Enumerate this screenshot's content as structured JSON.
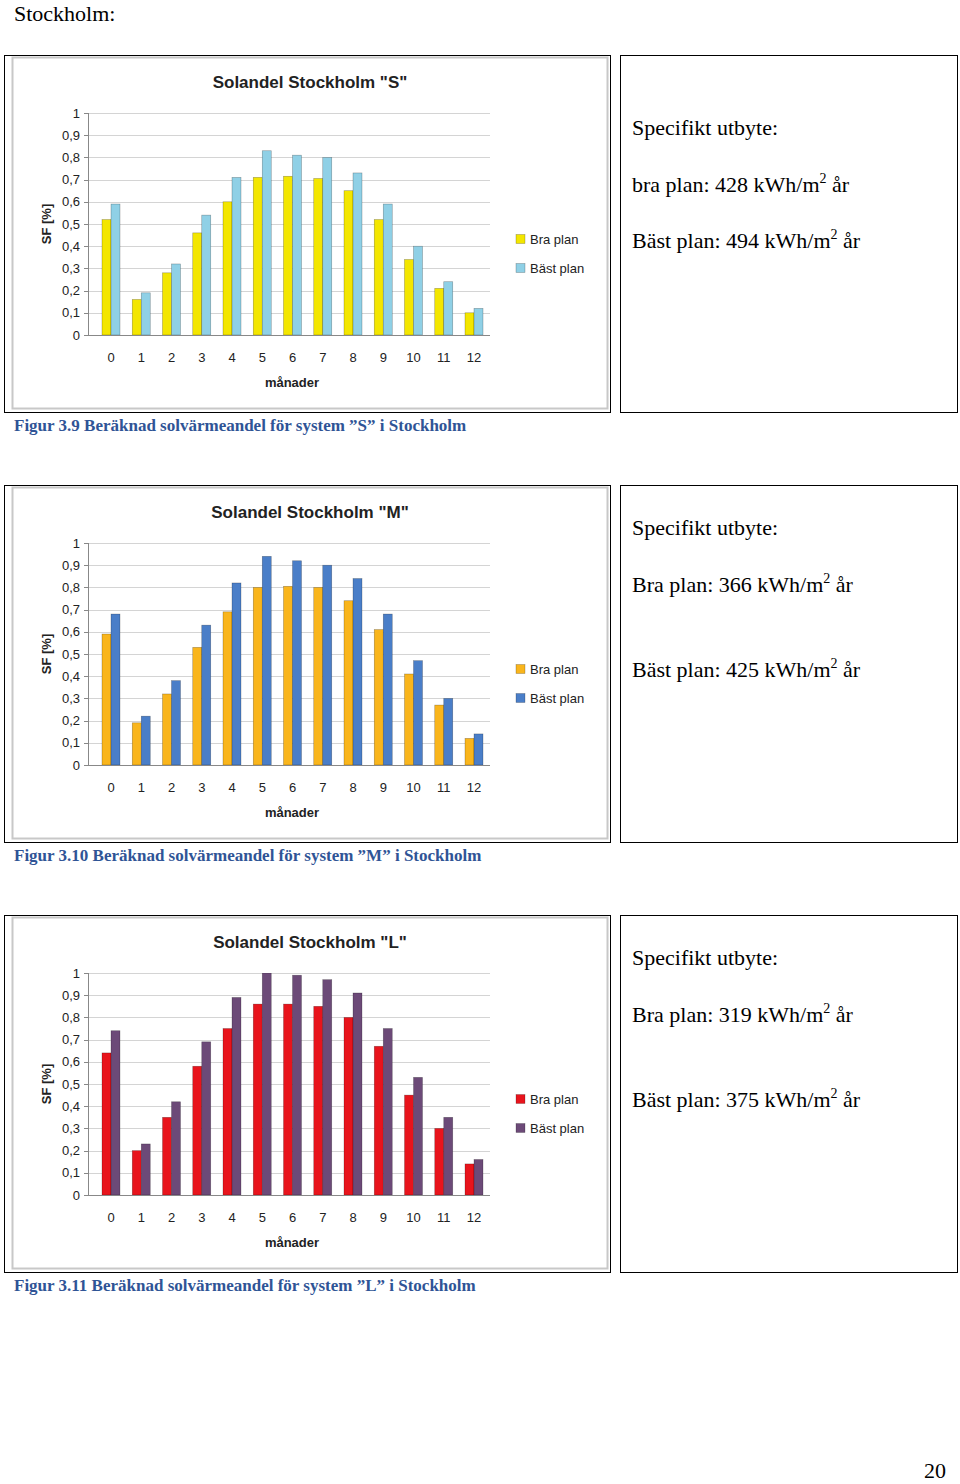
{
  "page": {
    "heading": "Stockholm:",
    "page_number": 20
  },
  "chart_data": [
    {
      "type": "bar",
      "title": "Solandel Stockholm \"S\"",
      "x_label": "månader",
      "y_label": "SF [%]",
      "categories": [
        "0",
        "1",
        "2",
        "3",
        "4",
        "5",
        "6",
        "7",
        "8",
        "9",
        "10",
        "11",
        "12"
      ],
      "series": [
        {
          "name": "Bra plan",
          "color": "#f3e600",
          "values": [
            0.52,
            0.16,
            0.28,
            0.46,
            0.6,
            0.71,
            0.715,
            0.705,
            0.65,
            0.52,
            0.34,
            0.21,
            0.1
          ]
        },
        {
          "name": "Bäst plan",
          "color": "#8fd0e6",
          "values": [
            0.59,
            0.19,
            0.32,
            0.54,
            0.71,
            0.83,
            0.81,
            0.8,
            0.73,
            0.59,
            0.4,
            0.24,
            0.12
          ]
        }
      ],
      "ylim": [
        0,
        1
      ],
      "yticks": [
        0,
        {
          "value": 0.1,
          "label": "0,1"
        },
        {
          "value": 0.2,
          "label": "0,2"
        },
        {
          "value": 0.3,
          "label": "0,3"
        },
        {
          "value": 0.4,
          "label": "0,4"
        },
        {
          "value": 0.5,
          "label": "0,5"
        },
        {
          "value": 0.6,
          "label": "0,6"
        },
        {
          "value": 0.7,
          "label": "0,7"
        },
        {
          "value": 0.8,
          "label": "0,8"
        },
        {
          "value": 0.9,
          "label": "0,9"
        },
        1
      ],
      "grid": true,
      "legend": "right"
    },
    {
      "type": "bar",
      "title": "Solandel Stockholm \"M\"",
      "x_label": "månader",
      "y_label": "SF [%]",
      "categories": [
        "0",
        "1",
        "2",
        "3",
        "4",
        "5",
        "6",
        "7",
        "8",
        "9",
        "10",
        "11",
        "12"
      ],
      "series": [
        {
          "name": "Bra plan",
          "color": "#f9b51c",
          "values": [
            0.59,
            0.19,
            0.32,
            0.53,
            0.69,
            0.8,
            0.805,
            0.8,
            0.74,
            0.61,
            0.41,
            0.27,
            0.12
          ]
        },
        {
          "name": "Bäst plan",
          "color": "#4a7ec8",
          "values": [
            0.68,
            0.22,
            0.38,
            0.63,
            0.82,
            0.94,
            0.92,
            0.9,
            0.84,
            0.68,
            0.47,
            0.3,
            0.14
          ]
        }
      ],
      "ylim": [
        0,
        1
      ],
      "yticks": [
        0,
        {
          "value": 0.1,
          "label": "0,1"
        },
        {
          "value": 0.2,
          "label": "0,2"
        },
        {
          "value": 0.3,
          "label": "0,3"
        },
        {
          "value": 0.4,
          "label": "0,4"
        },
        {
          "value": 0.5,
          "label": "0,5"
        },
        {
          "value": 0.6,
          "label": "0,6"
        },
        {
          "value": 0.7,
          "label": "0,7"
        },
        {
          "value": 0.8,
          "label": "0,8"
        },
        {
          "value": 0.9,
          "label": "0,9"
        },
        1
      ],
      "grid": true,
      "legend": "right"
    },
    {
      "type": "bar",
      "title": "Solandel Stockholm \"L\"",
      "x_label": "månader",
      "y_label": "SF [%]",
      "categories": [
        "0",
        "1",
        "2",
        "3",
        "4",
        "5",
        "6",
        "7",
        "8",
        "9",
        "10",
        "11",
        "12"
      ],
      "series": [
        {
          "name": "Bra plan",
          "color": "#e8141c",
          "values": [
            0.64,
            0.2,
            0.35,
            0.58,
            0.75,
            0.86,
            0.86,
            0.85,
            0.8,
            0.67,
            0.45,
            0.3,
            0.14
          ]
        },
        {
          "name": "Bäst plan",
          "color": "#6c4a78",
          "values": [
            0.74,
            0.23,
            0.42,
            0.69,
            0.89,
            1.0,
            0.99,
            0.97,
            0.91,
            0.75,
            0.53,
            0.35,
            0.16
          ]
        }
      ],
      "ylim": [
        0,
        1
      ],
      "yticks": [
        0,
        {
          "value": 0.1,
          "label": "0,1"
        },
        {
          "value": 0.2,
          "label": "0,2"
        },
        {
          "value": 0.3,
          "label": "0,3"
        },
        {
          "value": 0.4,
          "label": "0,4"
        },
        {
          "value": 0.5,
          "label": "0,5"
        },
        {
          "value": 0.6,
          "label": "0,6"
        },
        {
          "value": 0.7,
          "label": "0,7"
        },
        {
          "value": 0.8,
          "label": "0,8"
        },
        {
          "value": 0.9,
          "label": "0,9"
        },
        1
      ],
      "grid": true,
      "legend": "right"
    }
  ],
  "figures": [
    {
      "caption": "Figur 3.9 Beräknad solvärmeandel för system ”S” i Stockholm",
      "yield": {
        "heading": "Specifikt utbyte:",
        "rows": [
          {
            "label": "bra plan:",
            "value": 428,
            "unit": "kWh/m",
            "unit_exponent": 2,
            "period": "år"
          },
          {
            "label": "Bäst plan:",
            "value": 494,
            "unit": "kWh/m",
            "unit_exponent": 2,
            "period": "år"
          }
        ]
      }
    },
    {
      "caption": "Figur 3.10 Beräknad solvärmeandel för system ”M” i Stockholm",
      "yield": {
        "heading": "Specifikt utbyte:",
        "rows": [
          {
            "label": "Bra plan:",
            "value": 366,
            "unit": "kWh/m",
            "unit_exponent": 2,
            "period": "år"
          },
          {
            "label": "Bäst plan:",
            "value": 425,
            "unit": "kWh/m",
            "unit_exponent": 2,
            "period": "år"
          }
        ]
      }
    },
    {
      "caption": "Figur 3.11 Beräknad solvärmeandel för system ”L” i Stockholm",
      "yield": {
        "heading": "Specifikt utbyte:",
        "rows": [
          {
            "label": "Bra plan:",
            "value": 319,
            "unit": "kWh/m",
            "unit_exponent": 2,
            "period": "år"
          },
          {
            "label": "Bäst plan:",
            "value": 375,
            "unit": "kWh/m",
            "unit_exponent": 2,
            "period": "år"
          }
        ]
      }
    }
  ]
}
